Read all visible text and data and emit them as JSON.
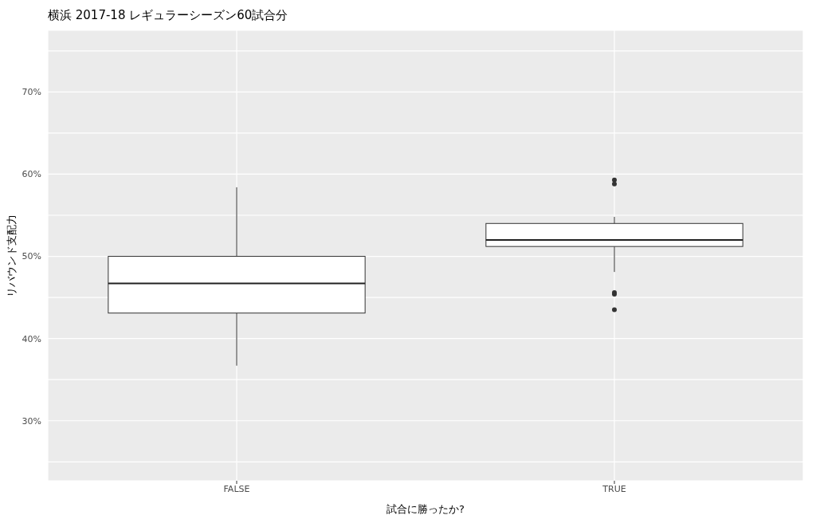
{
  "chart_data": {
    "type": "box",
    "title": "横浜 2017-18 レギュラーシーズン60試合分",
    "xlabel": "試合に勝ったか?",
    "ylabel": "リバウンド支配力",
    "categories": [
      "FALSE",
      "TRUE"
    ],
    "boxes": [
      {
        "low": 36.7,
        "q1": 43.1,
        "median": 46.7,
        "q3": 50.0,
        "high": 58.4
      },
      {
        "low": 48.1,
        "q1": 51.2,
        "median": 52.0,
        "q3": 54.0,
        "high": 54.8,
        "outliers": [
          59.3,
          58.8,
          45.6,
          45.4,
          43.5
        ]
      }
    ],
    "ylim": [
      22.7,
      77.5
    ],
    "yticks": [
      {
        "value": 25,
        "label": null
      },
      {
        "value": 30,
        "label": "30%"
      },
      {
        "value": 35,
        "label": null
      },
      {
        "value": 40,
        "label": "40%"
      },
      {
        "value": 45,
        "label": null
      },
      {
        "value": 50,
        "label": "50%"
      },
      {
        "value": 55,
        "label": null
      },
      {
        "value": 60,
        "label": "60%"
      },
      {
        "value": 65,
        "label": null
      },
      {
        "value": 70,
        "label": "70%"
      },
      {
        "value": 75,
        "label": null
      }
    ],
    "grid": true
  }
}
